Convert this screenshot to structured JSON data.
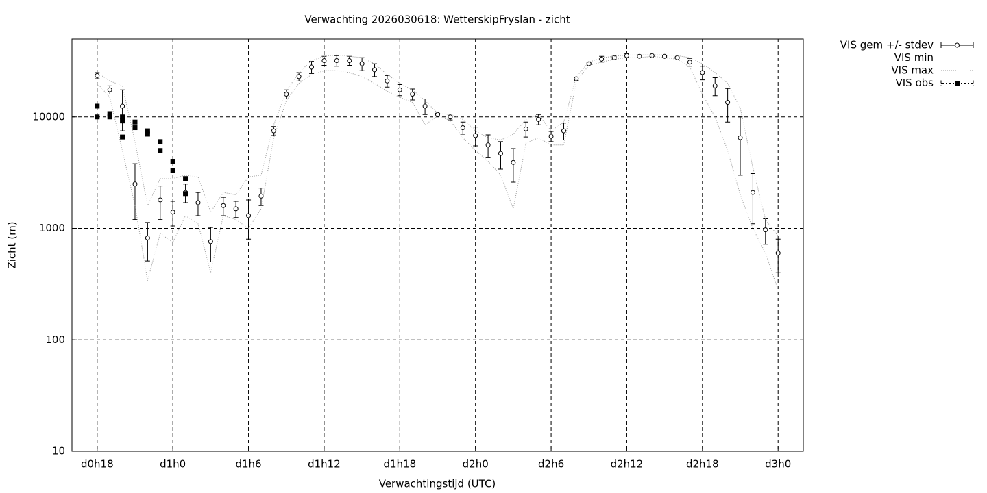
{
  "chart_data": {
    "type": "line",
    "title": "Verwachting 2026030618: WetterskipFryslan - zicht",
    "x_label": "Verwachtingstijd (UTC)",
    "y_label": "Zicht (m)",
    "log_y": true,
    "grid": true,
    "legend": "outside-right",
    "xlim": [
      16,
      74
    ],
    "ylim": [
      10,
      50000
    ],
    "xticks": [
      {
        "value": 18,
        "label": "d0h18"
      },
      {
        "value": 24,
        "label": "d1h0"
      },
      {
        "value": 30,
        "label": "d1h6"
      },
      {
        "value": 36,
        "label": "d1h12"
      },
      {
        "value": 42,
        "label": "d1h18"
      },
      {
        "value": 48,
        "label": "d2h0"
      },
      {
        "value": 54,
        "label": "d2h6"
      },
      {
        "value": 60,
        "label": "d2h12"
      },
      {
        "value": 66,
        "label": "d2h18"
      },
      {
        "value": 72,
        "label": "d3h0"
      }
    ],
    "yticks": [
      10,
      100,
      1000,
      10000
    ],
    "x": [
      18,
      19,
      20,
      21,
      22,
      23,
      24,
      25,
      26,
      27,
      28,
      29,
      30,
      31,
      32,
      33,
      34,
      35,
      36,
      37,
      38,
      39,
      40,
      41,
      42,
      43,
      44,
      45,
      46,
      47,
      48,
      49,
      50,
      51,
      52,
      53,
      54,
      55,
      56,
      57,
      58,
      59,
      60,
      61,
      62,
      63,
      64,
      65,
      66,
      67,
      68,
      69,
      70,
      71,
      72
    ],
    "series": [
      {
        "name": "VIS gem +/- stdev",
        "color": "#000000",
        "values": [
          23500,
          17500,
          12500,
          2500,
          820,
          1800,
          1400,
          2100,
          1700,
          760,
          1600,
          1500,
          1300,
          1950,
          7500,
          16000,
          23000,
          28000,
          32000,
          32000,
          32000,
          30000,
          26500,
          21000,
          17500,
          16000,
          12500,
          10500,
          10000,
          8000,
          6800,
          5600,
          4700,
          3900,
          7800,
          9500,
          6700,
          7500,
          22000,
          30000,
          33000,
          34000,
          35500,
          35000,
          35500,
          35000,
          34000,
          31000,
          25000,
          19000,
          13500,
          6500,
          2100,
          970,
          600
        ],
        "stdev": [
          1500,
          1500,
          5000,
          1300,
          310,
          600,
          350,
          400,
          400,
          260,
          300,
          250,
          500,
          350,
          700,
          1500,
          2000,
          3500,
          3000,
          3500,
          3000,
          4000,
          3500,
          2500,
          2000,
          1800,
          2000,
          300,
          600,
          1000,
          1300,
          1300,
          1300,
          1300,
          1200,
          1000,
          700,
          1300,
          800,
          500,
          2000,
          1000,
          1500,
          1000,
          500,
          500,
          500,
          2500,
          3500,
          3500,
          4500,
          3500,
          1000,
          250,
          200
        ]
      },
      {
        "name": "VIS min",
        "color": "#999999",
        "values": [
          20000,
          15000,
          5000,
          1600,
          340,
          900,
          750,
          1300,
          1100,
          400,
          1300,
          1200,
          1000,
          1500,
          6500,
          14000,
          20000,
          24000,
          26000,
          26000,
          25000,
          23000,
          20000,
          17000,
          15000,
          13500,
          8500,
          10200,
          9300,
          6500,
          5000,
          4000,
          3000,
          1500,
          5800,
          6500,
          5600,
          5600,
          21000,
          29000,
          31000,
          33000,
          34000,
          34000,
          35000,
          34000,
          33000,
          28000,
          16000,
          10000,
          5000,
          2000,
          1000,
          600,
          280
        ]
      },
      {
        "name": "VIS max",
        "color": "#999999",
        "values": [
          25000,
          21000,
          19000,
          6000,
          1600,
          2800,
          2800,
          3000,
          2900,
          1400,
          2100,
          2000,
          2900,
          3000,
          8500,
          17000,
          25000,
          32000,
          35000,
          36000,
          35000,
          34000,
          30000,
          24000,
          20000,
          17500,
          14000,
          10800,
          10500,
          9500,
          7500,
          6500,
          6200,
          7000,
          9500,
          10500,
          7500,
          9000,
          23000,
          31000,
          34000,
          35000,
          36000,
          36000,
          36000,
          36000,
          35500,
          34000,
          30000,
          25000,
          20000,
          12000,
          3500,
          1200,
          850
        ]
      },
      {
        "name": "VIS obs",
        "color": "#000000",
        "x": [
          18,
          18,
          19,
          19,
          20,
          20,
          20,
          21,
          21,
          22,
          22,
          23,
          23,
          24,
          24,
          25,
          25
        ],
        "values": [
          12500,
          10000,
          10700,
          10000,
          10000,
          9200,
          6600,
          9000,
          8000,
          7500,
          7000,
          6000,
          5000,
          4000,
          3300,
          2800,
          2050
        ]
      }
    ]
  }
}
